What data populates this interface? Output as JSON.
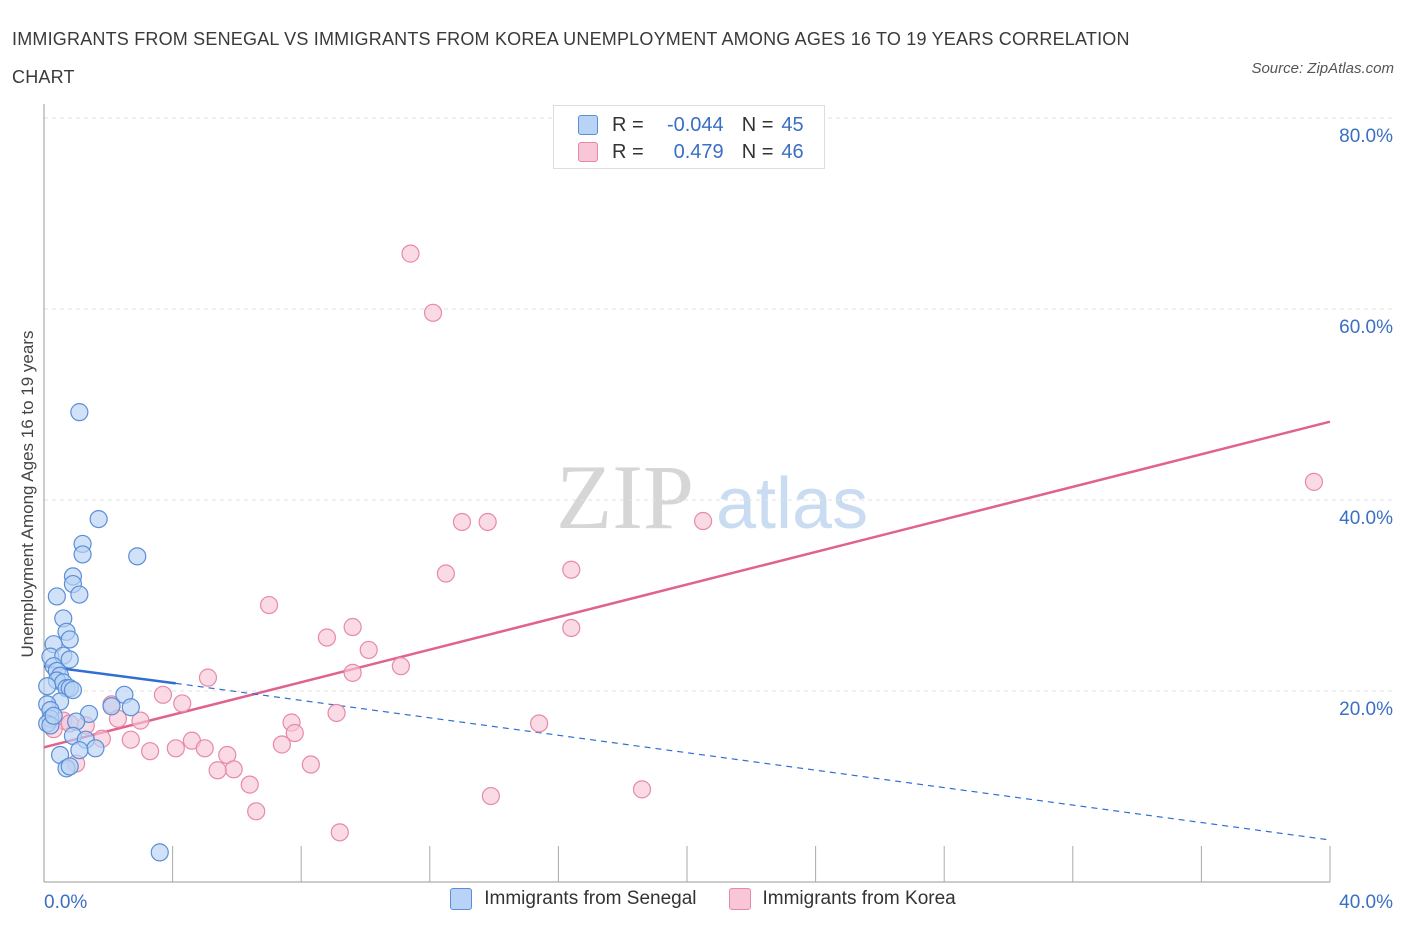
{
  "title": "IMMIGRANTS FROM SENEGAL VS IMMIGRANTS FROM KOREA UNEMPLOYMENT AMONG AGES 16 TO 19 YEARS CORRELATION CHART",
  "source": "Source: ZipAtlas.com",
  "watermark": {
    "zip": "ZIP",
    "atlas": "atlas"
  },
  "legend": {
    "r_label": "R =",
    "n_label": "N =",
    "series": [
      {
        "r": "-0.044",
        "n": "45"
      },
      {
        "r": "0.479",
        "n": "46"
      }
    ]
  },
  "colors": {
    "senegal_fill": "#b8d3f5",
    "senegal_stroke": "#5a8fd6",
    "senegal_line": "#2f6fcf",
    "korea_fill": "#f8c6d6",
    "korea_stroke": "#e68aa8",
    "korea_line": "#e0628e",
    "axis_label": "#3a6fc4"
  },
  "chart_data": {
    "type": "scatter",
    "title": "IMMIGRANTS FROM SENEGAL VS IMMIGRANTS FROM KOREA UNEMPLOYMENT AMONG AGES 16 TO 19 YEARS CORRELATION CHART",
    "xlabel": "",
    "ylabel": "Unemployment Among Ages 16 to 19 years",
    "xlim": [
      0,
      40
    ],
    "ylim": [
      0,
      80
    ],
    "x_tick_labels": [
      {
        "value": 0,
        "label": "0.0%"
      },
      {
        "value": 40,
        "label": "40.0%"
      }
    ],
    "y_tick_labels": [
      {
        "value": 20,
        "label": "20.0%"
      },
      {
        "value": 40,
        "label": "40.0%"
      },
      {
        "value": 60,
        "label": "60.0%"
      },
      {
        "value": 80,
        "label": "80.0%"
      }
    ],
    "grid": true,
    "legend_position": "top-center",
    "series": [
      {
        "name": "Immigrants from Senegal",
        "points": [
          [
            1.1,
            49.2
          ],
          [
            1.7,
            38.0
          ],
          [
            1.2,
            35.4
          ],
          [
            1.2,
            34.3
          ],
          [
            2.9,
            34.1
          ],
          [
            0.9,
            32.0
          ],
          [
            0.9,
            31.2
          ],
          [
            1.1,
            30.1
          ],
          [
            0.4,
            29.9
          ],
          [
            0.6,
            27.6
          ],
          [
            0.7,
            26.2
          ],
          [
            0.8,
            25.4
          ],
          [
            0.3,
            24.9
          ],
          [
            0.2,
            23.6
          ],
          [
            0.6,
            23.7
          ],
          [
            0.8,
            23.3
          ],
          [
            0.3,
            22.6
          ],
          [
            0.4,
            22.1
          ],
          [
            0.5,
            21.6
          ],
          [
            0.4,
            21.1
          ],
          [
            0.6,
            20.9
          ],
          [
            0.7,
            20.3
          ],
          [
            0.8,
            20.3
          ],
          [
            0.9,
            20.1
          ],
          [
            0.1,
            20.5
          ],
          [
            2.5,
            19.6
          ],
          [
            0.5,
            18.9
          ],
          [
            0.1,
            18.6
          ],
          [
            2.1,
            18.4
          ],
          [
            2.7,
            18.3
          ],
          [
            0.2,
            18.0
          ],
          [
            1.4,
            17.6
          ],
          [
            0.2,
            17.1
          ],
          [
            0.1,
            16.6
          ],
          [
            0.2,
            16.4
          ],
          [
            1.0,
            16.8
          ],
          [
            0.9,
            15.3
          ],
          [
            1.3,
            14.9
          ],
          [
            1.6,
            14.0
          ],
          [
            1.1,
            13.8
          ],
          [
            0.5,
            13.3
          ],
          [
            0.7,
            11.9
          ],
          [
            0.8,
            12.1
          ],
          [
            3.6,
            3.1
          ],
          [
            0.3,
            17.4
          ]
        ]
      },
      {
        "name": "Immigrants from Korea",
        "points": [
          [
            11.4,
            65.8
          ],
          [
            12.1,
            59.6
          ],
          [
            39.5,
            41.9
          ],
          [
            13.0,
            37.7
          ],
          [
            13.8,
            37.7
          ],
          [
            20.5,
            37.8
          ],
          [
            16.4,
            32.7
          ],
          [
            12.5,
            32.3
          ],
          [
            7.0,
            29.0
          ],
          [
            9.6,
            26.7
          ],
          [
            16.4,
            26.6
          ],
          [
            8.8,
            25.6
          ],
          [
            10.1,
            24.3
          ],
          [
            11.1,
            22.6
          ],
          [
            9.6,
            21.9
          ],
          [
            5.1,
            21.4
          ],
          [
            3.7,
            19.6
          ],
          [
            4.3,
            18.7
          ],
          [
            2.1,
            18.6
          ],
          [
            9.1,
            17.7
          ],
          [
            2.3,
            17.1
          ],
          [
            0.6,
            16.9
          ],
          [
            3.0,
            16.9
          ],
          [
            0.8,
            16.6
          ],
          [
            1.3,
            16.4
          ],
          [
            7.7,
            16.7
          ],
          [
            15.4,
            16.6
          ],
          [
            0.3,
            16.0
          ],
          [
            7.8,
            15.6
          ],
          [
            1.8,
            15.0
          ],
          [
            2.7,
            14.9
          ],
          [
            4.6,
            14.8
          ],
          [
            7.4,
            14.4
          ],
          [
            4.1,
            14.0
          ],
          [
            5.0,
            14.0
          ],
          [
            3.3,
            13.7
          ],
          [
            5.7,
            13.3
          ],
          [
            1.0,
            12.4
          ],
          [
            8.3,
            12.3
          ],
          [
            5.9,
            11.8
          ],
          [
            5.4,
            11.7
          ],
          [
            6.4,
            10.2
          ],
          [
            18.6,
            9.7
          ],
          [
            13.9,
            9.0
          ],
          [
            6.6,
            7.4
          ],
          [
            9.2,
            5.2
          ]
        ]
      }
    ],
    "trendlines": [
      {
        "series": "Immigrants from Senegal",
        "solid": [
          [
            0,
            22.6
          ],
          [
            4.1,
            20.8
          ]
        ],
        "dashed": [
          [
            4.1,
            20.8
          ],
          [
            40,
            4.4
          ]
        ]
      },
      {
        "series": "Immigrants from Korea",
        "solid": [
          [
            0,
            14.1
          ],
          [
            40,
            48.2
          ]
        ]
      }
    ]
  }
}
